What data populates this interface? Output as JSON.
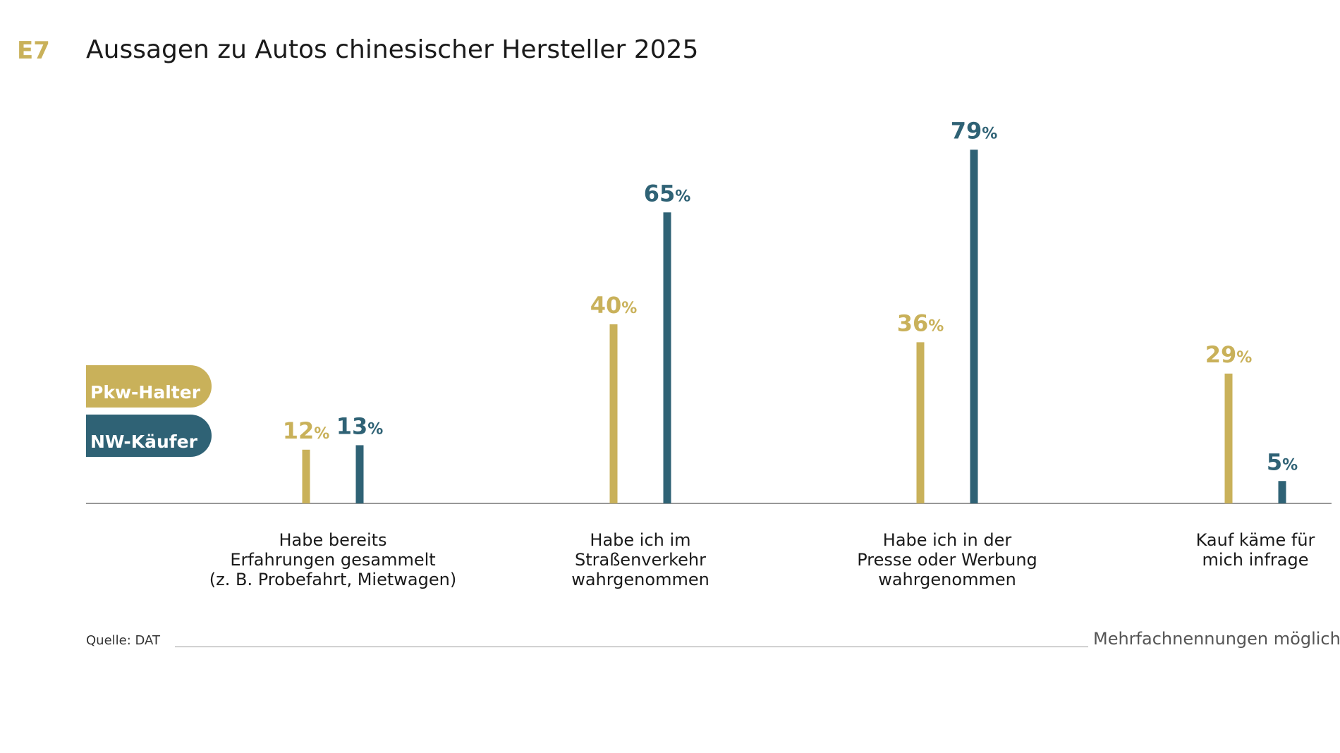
{
  "header": {
    "code": "E7",
    "title": "Aussagen zu Autos chinesischer Hersteller 2025"
  },
  "legend": {
    "items": [
      {
        "label": "Pkw-Halter",
        "color": "#c9b15a"
      },
      {
        "label": "NW-Käufer",
        "color": "#2f6275"
      }
    ]
  },
  "categories_text": [
    {
      "lines": [
        "Habe bereits",
        "Erfahrungen gesammelt",
        "(z. B. Probefahrt, Mietwagen)"
      ]
    },
    {
      "lines": [
        "Habe ich im",
        "Straßenverkehr",
        "wahrgenommen"
      ]
    },
    {
      "lines": [
        "Habe ich in der",
        "Presse oder Werbung",
        "wahrgenommen"
      ]
    },
    {
      "lines": [
        "Kauf käme für",
        "mich infrage"
      ]
    }
  ],
  "footer": {
    "source": "Quelle: DAT",
    "note": "Mehrfachnennungen möglich"
  },
  "chart_data": {
    "type": "bar",
    "title": "Aussagen zu Autos chinesischer Hersteller 2025",
    "categories": [
      "Habe bereits Erfahrungen gesammelt (z. B. Probefahrt, Mietwagen)",
      "Habe ich im Straßenverkehr wahrgenommen",
      "Habe ich in der Presse oder Werbung wahrgenommen",
      "Kauf käme für mich infrage"
    ],
    "series": [
      {
        "name": "Pkw-Halter",
        "color": "#c9b15a",
        "values": [
          12,
          40,
          36,
          29
        ]
      },
      {
        "name": "NW-Käufer",
        "color": "#2f6275",
        "values": [
          13,
          65,
          79,
          5
        ]
      }
    ],
    "value_suffix": "%",
    "ylim": [
      0,
      100
    ],
    "grid": false,
    "legend_position": "left"
  }
}
